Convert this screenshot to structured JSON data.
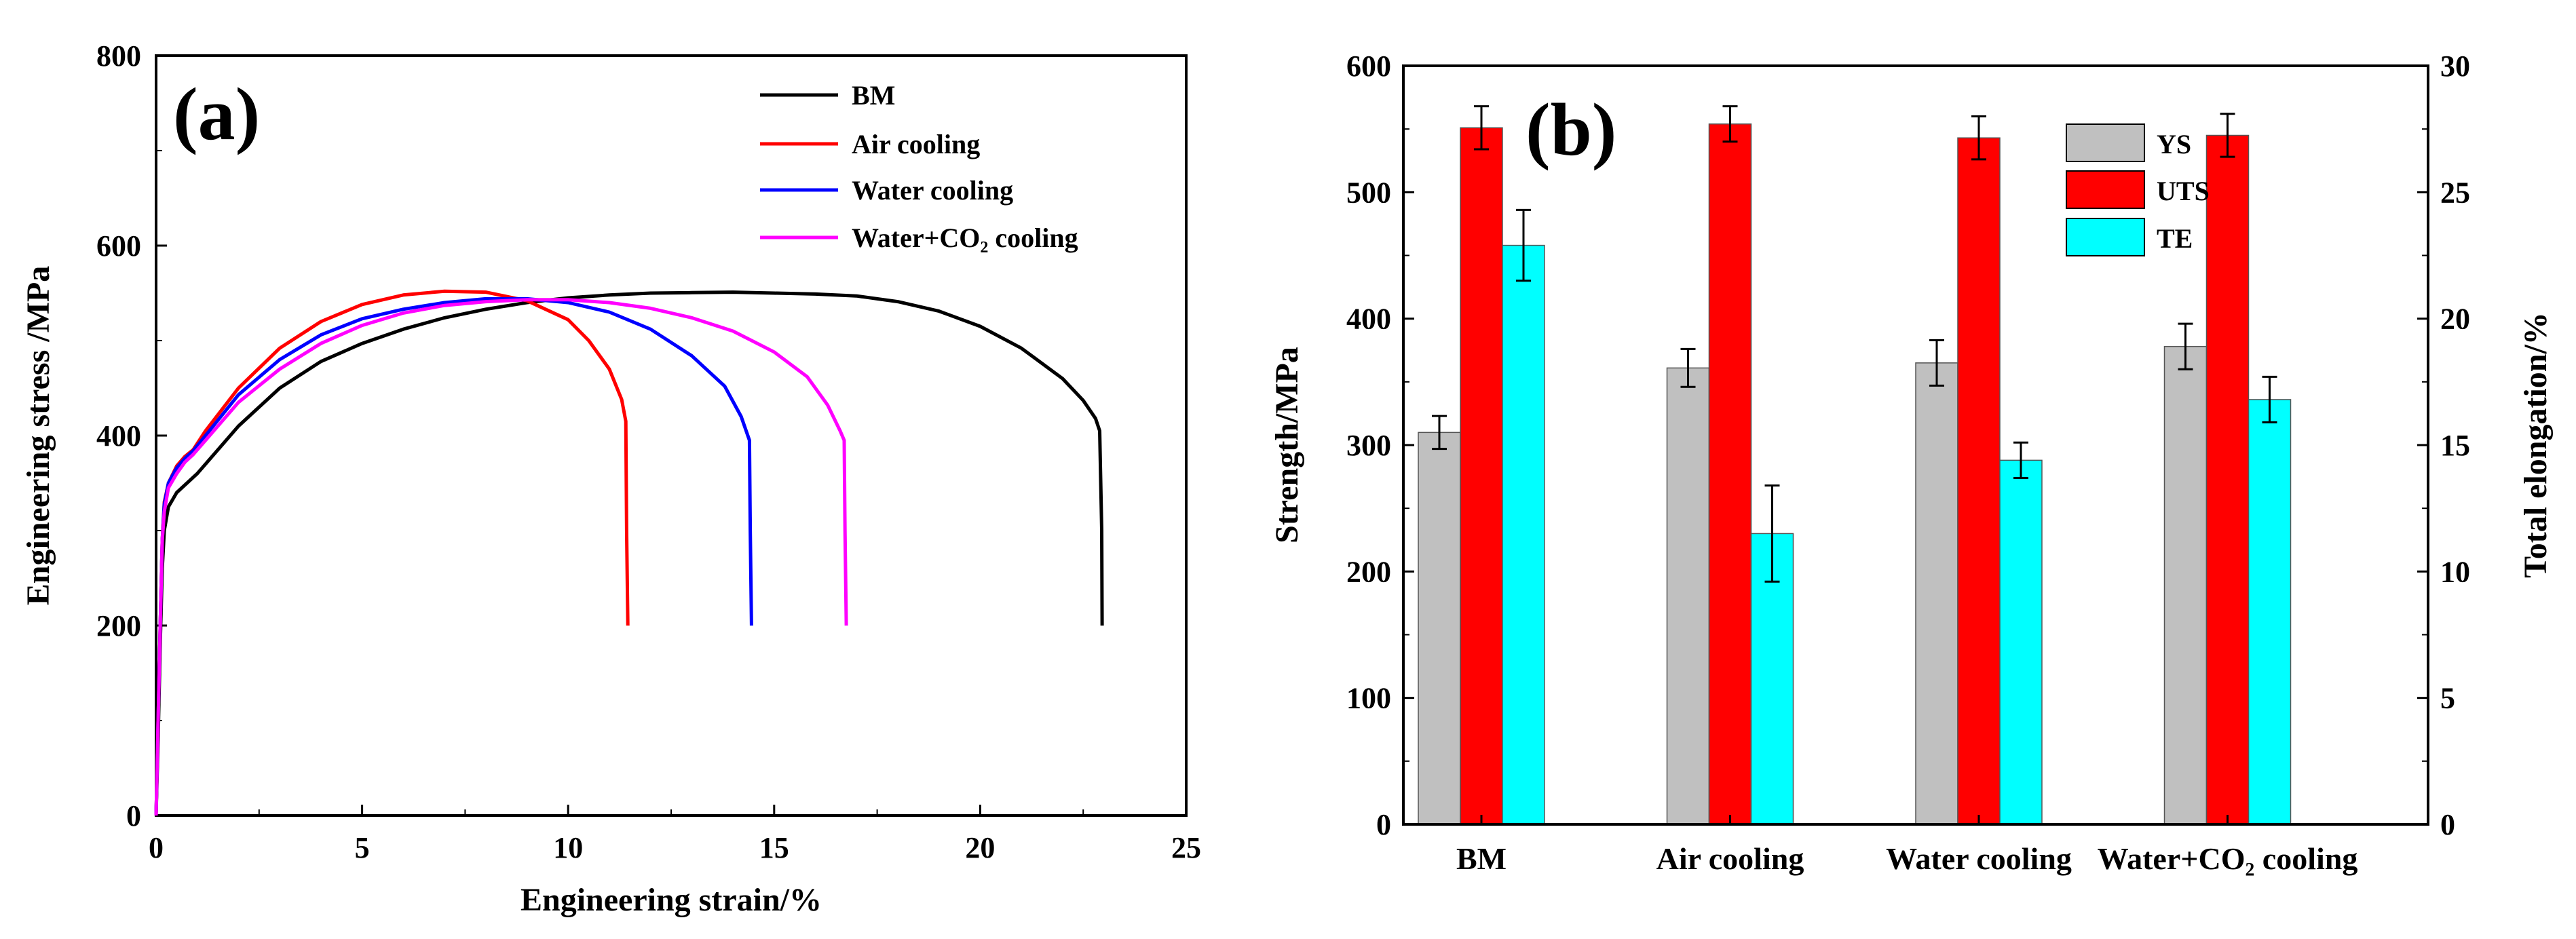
{
  "chart_data": [
    {
      "type": "line",
      "panel_label": "(a)",
      "xlabel": "Engineering strain/%",
      "ylabel": "Engineering stress /MPa",
      "xlim": [
        0,
        25
      ],
      "ylim": [
        0,
        800
      ],
      "xticks": [
        0,
        5,
        10,
        15,
        20,
        25
      ],
      "yticks": [
        0,
        200,
        400,
        600,
        800
      ],
      "legend_position": "top-right",
      "series": [
        {
          "name": "BM",
          "color": "#000000",
          "points": [
            [
              0,
              0
            ],
            [
              0.05,
              80
            ],
            [
              0.1,
              180
            ],
            [
              0.15,
              260
            ],
            [
              0.2,
              300
            ],
            [
              0.3,
              325
            ],
            [
              0.5,
              340
            ],
            [
              1,
              360
            ],
            [
              2,
              410
            ],
            [
              3,
              450
            ],
            [
              4,
              478
            ],
            [
              5,
              497
            ],
            [
              6,
              512
            ],
            [
              7,
              524
            ],
            [
              8,
              533
            ],
            [
              9,
              540
            ],
            [
              10,
              545
            ],
            [
              11,
              548
            ],
            [
              12,
              550
            ],
            [
              13,
              550.5
            ],
            [
              14,
              551
            ],
            [
              15,
              550
            ],
            [
              16,
              549
            ],
            [
              17,
              547
            ],
            [
              18,
              541
            ],
            [
              19,
              531
            ],
            [
              20,
              515
            ],
            [
              21,
              492
            ],
            [
              22,
              460
            ],
            [
              22.5,
              437
            ],
            [
              22.8,
              418
            ],
            [
              22.9,
              405
            ],
            [
              22.95,
              300
            ],
            [
              22.96,
              200
            ]
          ]
        },
        {
          "name": "Air cooling",
          "color": "#ff0000",
          "points": [
            [
              0,
              0
            ],
            [
              0.05,
              100
            ],
            [
              0.1,
              200
            ],
            [
              0.15,
              290
            ],
            [
              0.2,
              330
            ],
            [
              0.3,
              350
            ],
            [
              0.5,
              368
            ],
            [
              0.7,
              378
            ],
            [
              0.9,
              385
            ],
            [
              1.2,
              405
            ],
            [
              2,
              450
            ],
            [
              3,
              492
            ],
            [
              4,
              520
            ],
            [
              5,
              538
            ],
            [
              6,
              548
            ],
            [
              7,
              552
            ],
            [
              8,
              551
            ],
            [
              9,
              542
            ],
            [
              10,
              522
            ],
            [
              10.5,
              500
            ],
            [
              11,
              470
            ],
            [
              11.3,
              438
            ],
            [
              11.4,
              415
            ],
            [
              11.42,
              300
            ],
            [
              11.45,
              200
            ]
          ]
        },
        {
          "name": "Water cooling",
          "color": "#0000ff",
          "points": [
            [
              0,
              0
            ],
            [
              0.05,
              100
            ],
            [
              0.1,
              200
            ],
            [
              0.15,
              290
            ],
            [
              0.2,
              328
            ],
            [
              0.3,
              350
            ],
            [
              0.5,
              366
            ],
            [
              0.7,
              376
            ],
            [
              0.9,
              384
            ],
            [
              1.2,
              400
            ],
            [
              2,
              443
            ],
            [
              3,
              480
            ],
            [
              4,
              506
            ],
            [
              5,
              523
            ],
            [
              6,
              533
            ],
            [
              7,
              540
            ],
            [
              8,
              544
            ],
            [
              9,
              544
            ],
            [
              10,
              540
            ],
            [
              11,
              530
            ],
            [
              12,
              512
            ],
            [
              13,
              484
            ],
            [
              13.8,
              452
            ],
            [
              14.2,
              420
            ],
            [
              14.4,
              395
            ],
            [
              14.42,
              300
            ],
            [
              14.45,
              200
            ]
          ]
        },
        {
          "name": "Water+CO₂ cooling",
          "color": "#ff00ff",
          "points": [
            [
              0,
              0
            ],
            [
              0.05,
              100
            ],
            [
              0.1,
              200
            ],
            [
              0.15,
              290
            ],
            [
              0.2,
              320
            ],
            [
              0.3,
              345
            ],
            [
              0.5,
              360
            ],
            [
              0.7,
              372
            ],
            [
              0.9,
              380
            ],
            [
              1.2,
              395
            ],
            [
              2,
              435
            ],
            [
              3,
              470
            ],
            [
              4,
              497
            ],
            [
              5,
              516
            ],
            [
              6,
              529
            ],
            [
              7,
              537
            ],
            [
              8,
              541
            ],
            [
              9,
              543
            ],
            [
              10,
              543
            ],
            [
              11,
              540
            ],
            [
              12,
              534
            ],
            [
              13,
              524
            ],
            [
              14,
              510
            ],
            [
              15,
              488
            ],
            [
              15.8,
              462
            ],
            [
              16.3,
              432
            ],
            [
              16.6,
              405
            ],
            [
              16.7,
              395
            ],
            [
              16.72,
              300
            ],
            [
              16.75,
              200
            ]
          ]
        }
      ]
    },
    {
      "type": "bar",
      "panel_label": "(b)",
      "categories": [
        "BM",
        "Air cooling",
        "Water cooling",
        "Water+CO₂ cooling"
      ],
      "ylabel": "Strength/MPa",
      "y2label": "Total elongation/%",
      "ylim": [
        0,
        600
      ],
      "y2lim": [
        0,
        30
      ],
      "yticks": [
        0,
        100,
        200,
        300,
        400,
        500,
        600
      ],
      "y2ticks": [
        0,
        5,
        10,
        15,
        20,
        25,
        30
      ],
      "legend_position": "top-center",
      "series": [
        {
          "name": "YS",
          "axis": "left",
          "color": "#c0c0c0",
          "values": [
            310,
            361,
            365,
            378
          ],
          "errors": [
            13,
            15,
            18,
            18
          ]
        },
        {
          "name": "UTS",
          "axis": "left",
          "color": "#ff0000",
          "values": [
            551,
            554,
            543,
            545
          ],
          "errors": [
            17,
            14,
            17,
            17
          ]
        },
        {
          "name": "TE",
          "axis": "right",
          "color": "#00ffff",
          "values": [
            22.9,
            11.5,
            14.4,
            16.8
          ],
          "errors": [
            1.4,
            1.9,
            0.7,
            0.9
          ]
        }
      ]
    }
  ]
}
